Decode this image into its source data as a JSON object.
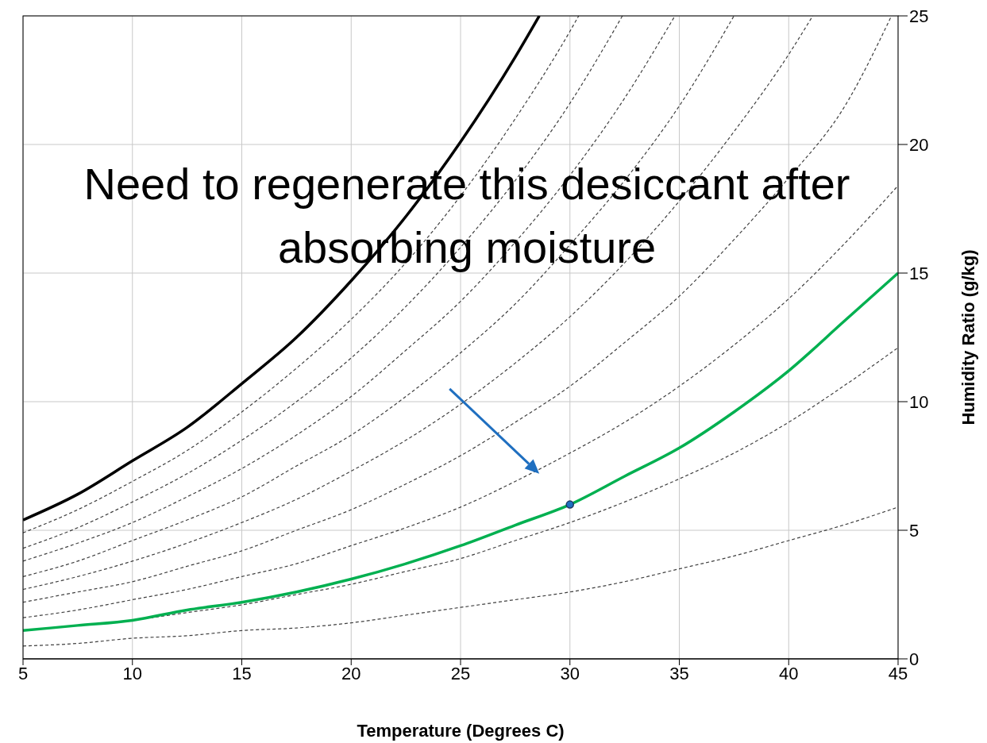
{
  "chart_data": {
    "type": "line",
    "xlabel": "Temperature (Degrees C)",
    "ylabel": "Humidity Ratio (g/kg)",
    "xlim": [
      5,
      45
    ],
    "xticks": [
      5,
      10,
      15,
      20,
      25,
      30,
      35,
      40,
      45
    ],
    "ylim": [
      0,
      25
    ],
    "yticks": [
      0,
      5,
      10,
      15,
      20,
      25
    ],
    "grid": true,
    "legend": false,
    "annotations": [
      "Need to regenerate this desiccant after absorbing moisture"
    ],
    "series": [
      {
        "color": "#000000",
        "line_style": "solid",
        "marker": "none",
        "x": [
          5,
          7.5,
          10,
          12.5,
          15,
          17.5,
          20,
          22.5,
          25,
          27.5,
          28.6
        ],
        "values": [
          5.4,
          6.4,
          7.7,
          9.0,
          10.7,
          12.5,
          14.7,
          17.2,
          20.1,
          23.4,
          25
        ]
      },
      {
        "type": "line",
        "color": "#404040",
        "line_style": "dashed",
        "marker": "none",
        "x": [
          5,
          7.5,
          10,
          12.5,
          15,
          17.5,
          20,
          22.5,
          25,
          27.5,
          30,
          30.4
        ],
        "values": [
          4.9,
          5.8,
          6.9,
          8.1,
          9.6,
          11.3,
          13.2,
          15.4,
          18.0,
          21.0,
          24.4,
          25
        ]
      },
      {
        "type": "line",
        "color": "#404040",
        "line_style": "dashed",
        "marker": "none",
        "x": [
          5,
          7.5,
          10,
          12.5,
          15,
          17.5,
          20,
          22.5,
          25,
          27.5,
          30,
          32.4
        ],
        "values": [
          4.3,
          5.1,
          6.1,
          7.2,
          8.5,
          10.0,
          11.7,
          13.7,
          16.0,
          18.6,
          21.6,
          25
        ]
      },
      {
        "type": "line",
        "color": "#404040",
        "line_style": "dashed",
        "marker": "none",
        "x": [
          5,
          7.5,
          10,
          12.5,
          15,
          17.5,
          20,
          22.5,
          25,
          27.5,
          30,
          32.5,
          34.8
        ],
        "values": [
          3.8,
          4.5,
          5.3,
          6.3,
          7.4,
          8.7,
          10.2,
          12.0,
          13.9,
          16.2,
          18.8,
          21.8,
          25
        ]
      },
      {
        "type": "line",
        "color": "#404040",
        "line_style": "dashed",
        "marker": "none",
        "x": [
          5,
          7.5,
          10,
          12.5,
          15,
          17.5,
          20,
          22.5,
          25,
          27.5,
          30,
          32.5,
          35,
          37.5
        ],
        "values": [
          3.2,
          3.8,
          4.6,
          5.4,
          6.3,
          7.5,
          8.7,
          10.2,
          11.9,
          13.8,
          16.1,
          18.6,
          21.5,
          25
        ]
      },
      {
        "type": "line",
        "color": "#404040",
        "line_style": "dashed",
        "marker": "none",
        "x": [
          5,
          7.5,
          10,
          12.5,
          15,
          17.5,
          20,
          22.5,
          25,
          27.5,
          30,
          32.5,
          35,
          37.5,
          40,
          41.1
        ],
        "values": [
          2.7,
          3.2,
          3.8,
          4.5,
          5.3,
          6.2,
          7.3,
          8.5,
          9.9,
          11.5,
          13.3,
          15.4,
          17.8,
          20.5,
          23.5,
          25
        ]
      },
      {
        "type": "line",
        "color": "#404040",
        "line_style": "dashed",
        "marker": "none",
        "x": [
          5,
          7.5,
          10,
          12.5,
          15,
          17.5,
          20,
          22.5,
          25,
          27.5,
          30,
          32.5,
          35,
          37.5,
          40,
          42.5,
          44.7
        ],
        "values": [
          2.2,
          2.6,
          3.0,
          3.6,
          4.2,
          5.0,
          5.8,
          6.8,
          7.9,
          9.2,
          10.6,
          12.3,
          14.1,
          16.3,
          18.7,
          21.4,
          25
        ]
      },
      {
        "type": "line",
        "color": "#404040",
        "line_style": "dashed",
        "marker": "none",
        "x": [
          5,
          7.5,
          10,
          12.5,
          15,
          17.5,
          20,
          22.5,
          25,
          27.5,
          30,
          32.5,
          35,
          37.5,
          40,
          42.5,
          45
        ],
        "values": [
          1.6,
          1.9,
          2.3,
          2.7,
          3.2,
          3.7,
          4.4,
          5.1,
          5.9,
          6.9,
          8.0,
          9.2,
          10.6,
          12.2,
          14.0,
          16.1,
          18.4
        ]
      },
      {
        "type": "line",
        "color": "#404040",
        "line_style": "dashed",
        "marker": "none",
        "x": [
          5,
          7.5,
          10,
          12.5,
          15,
          17.5,
          20,
          22.5,
          25,
          27.5,
          30,
          32.5,
          35,
          37.5,
          40,
          42.5,
          45
        ],
        "values": [
          1.1,
          1.3,
          1.5,
          1.8,
          2.1,
          2.5,
          2.9,
          3.4,
          3.9,
          4.6,
          5.3,
          6.1,
          7.0,
          8.0,
          9.2,
          10.6,
          12.1
        ]
      },
      {
        "type": "line",
        "color": "#404040",
        "line_style": "dashed",
        "marker": "none",
        "x": [
          5,
          7.5,
          10,
          12.5,
          15,
          17.5,
          20,
          22.5,
          25,
          27.5,
          30,
          32.5,
          35,
          37.5,
          40,
          42.5,
          45
        ],
        "values": [
          0.5,
          0.6,
          0.8,
          0.9,
          1.1,
          1.2,
          1.4,
          1.7,
          2.0,
          2.3,
          2.6,
          3.0,
          3.5,
          4.0,
          4.6,
          5.2,
          5.9
        ]
      },
      {
        "color": "#00b050",
        "line_style": "solid",
        "marker": "none",
        "x": [
          5,
          7.5,
          10,
          12.5,
          15,
          17.5,
          20,
          22.5,
          25,
          27.5,
          30,
          32.5,
          35,
          37.5,
          40,
          42.5,
          45
        ],
        "values": [
          1.1,
          1.3,
          1.5,
          1.9,
          2.2,
          2.6,
          3.1,
          3.7,
          4.4,
          5.2,
          6.0,
          7.1,
          8.2,
          9.6,
          11.2,
          13.1,
          15.0
        ]
      },
      {
        "type": "scatter",
        "color": "#1f6fc0",
        "marker": "circle",
        "x": [
          30
        ],
        "values": [
          6.0
        ]
      }
    ]
  }
}
